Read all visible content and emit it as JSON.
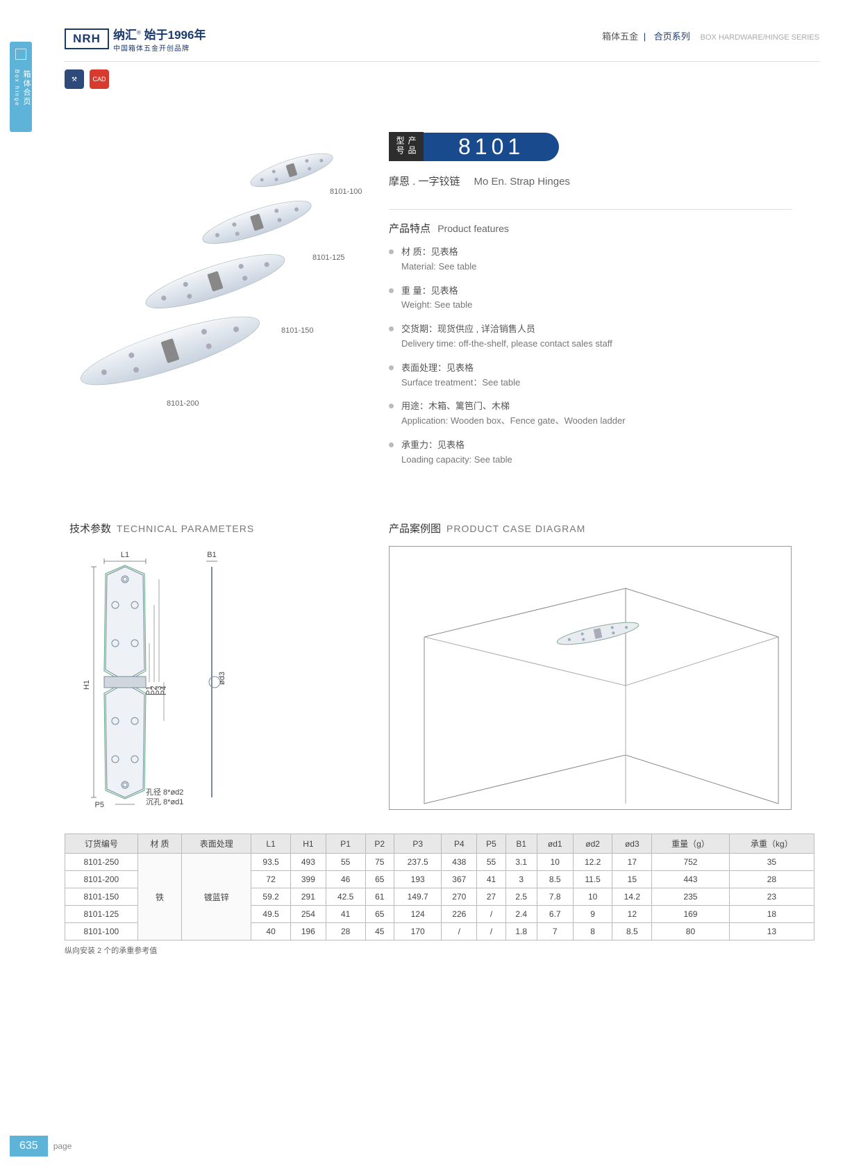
{
  "sidebar": {
    "label_cn": "箱体合页",
    "label_en": "Box hinge"
  },
  "header": {
    "logo": "NRH",
    "brand": "纳汇",
    "since": "始于1996年",
    "slogan": "中国箱体五金开创品牌",
    "crumb1": "箱体五金",
    "crumb2": "合页系列",
    "crumb_en": "BOX HARDWARE/HINGE SERIES"
  },
  "badges": {
    "b1": "⚒",
    "b2": "CAD"
  },
  "product": {
    "labels": [
      "8101-100",
      "8101-125",
      "8101-150",
      "8101-200"
    ],
    "model_tag": "产品型号",
    "model": "8101",
    "name_cn": "摩恩 . 一字铰链",
    "name_en": "Mo En. Strap Hinges",
    "feat_title_cn": "产品特点",
    "feat_title_en": "Product features",
    "features": [
      {
        "cn": "材 质：见表格",
        "en": "Material: See table"
      },
      {
        "cn": "重 量：见表格",
        "en": "Weight: See table"
      },
      {
        "cn": "交货期：现货供应 , 详洽销售人员",
        "en": "Delivery time: off-the-shelf, please contact sales staff"
      },
      {
        "cn": "表面处理：见表格",
        "en": "Surface treatment：See table"
      },
      {
        "cn": "用途：木箱、篱笆门、木梯",
        "en": "Application: Wooden box、Fence gate、Wooden ladder"
      },
      {
        "cn": "承重力：见表格",
        "en": "Loading capacity: See table"
      }
    ]
  },
  "sections": {
    "tech_cn": "技术参数",
    "tech_en": "TECHNICAL PARAMETERS",
    "case_cn": "产品案例图",
    "case_en": "PRODUCT CASE DIAGRAM"
  },
  "diagram": {
    "L1": "L1",
    "B1": "B1",
    "H1": "H1",
    "P1": "P1",
    "P2": "P2",
    "P3": "P3",
    "P4": "P4",
    "P5": "P5",
    "d3": "ød3",
    "hole1": "孔径 8*ød2",
    "hole2": "沉孔 8*ød1"
  },
  "table": {
    "headers": [
      "订货编号",
      "材 质",
      "表面处理",
      "L1",
      "H1",
      "P1",
      "P2",
      "P3",
      "P4",
      "P5",
      "B1",
      "ød1",
      "ød2",
      "ød3",
      "重量（g）",
      "承重（kg）"
    ],
    "material": "铁",
    "surface": "镀蓝锌",
    "rows": [
      [
        "8101-250",
        "93.5",
        "493",
        "55",
        "75",
        "237.5",
        "438",
        "55",
        "3.1",
        "10",
        "12.2",
        "17",
        "752",
        "35"
      ],
      [
        "8101-200",
        "72",
        "399",
        "46",
        "65",
        "193",
        "367",
        "41",
        "3",
        "8.5",
        "11.5",
        "15",
        "443",
        "28"
      ],
      [
        "8101-150",
        "59.2",
        "291",
        "42.5",
        "61",
        "149.7",
        "270",
        "27",
        "2.5",
        "7.8",
        "10",
        "14.2",
        "235",
        "23"
      ],
      [
        "8101-125",
        "49.5",
        "254",
        "41",
        "65",
        "124",
        "226",
        "/",
        "2.4",
        "6.7",
        "9",
        "12",
        "169",
        "18"
      ],
      [
        "8101-100",
        "40",
        "196",
        "28",
        "45",
        "170",
        "/",
        "/",
        "1.8",
        "7",
        "8",
        "8.5",
        "80",
        "13"
      ]
    ],
    "note": "纵向安装 2 个的承重参考值"
  },
  "footer": {
    "page": "635",
    "label": "page"
  },
  "colors": {
    "accent": "#5eb3d8",
    "navy": "#1a4a8e",
    "dark": "#2d2d2d",
    "red": "#d83a2e",
    "border": "#bbb"
  }
}
